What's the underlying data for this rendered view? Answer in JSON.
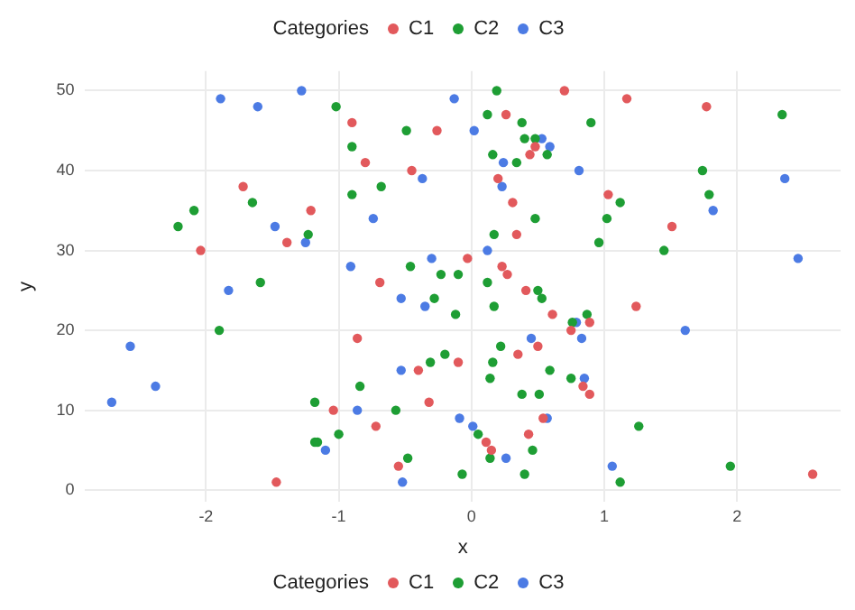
{
  "chart_data": {
    "type": "scatter",
    "xlabel": "x",
    "ylabel": "y",
    "legend_title": "Categories",
    "legend": "top",
    "grid": true,
    "marker": "circle",
    "xlim": [
      -2.91,
      2.78
    ],
    "xticks": [
      -2,
      -1,
      0,
      1,
      2
    ],
    "ylim": [
      -1.45,
      52.45
    ],
    "yticks": [
      0,
      10,
      20,
      30,
      40,
      50
    ],
    "series": [
      {
        "name": "C1",
        "color": "#e2595c",
        "x": [
          -1.72,
          -1.21,
          -1.39,
          -2.04,
          -1.47,
          -0.9,
          -0.8,
          -0.26,
          -0.45,
          -0.69,
          0.7,
          0.26,
          0.48,
          0.44,
          0.2,
          0.31,
          0.34,
          -0.03,
          0.23,
          0.27,
          0.41,
          1.17,
          1.77,
          1.03,
          1.51,
          0.61,
          0.89,
          0.75,
          -0.86,
          0.35,
          0.5,
          -0.1,
          -0.4,
          0.84,
          0.89,
          -1.04,
          -0.32,
          0.54,
          -0.72,
          0.43,
          0.11,
          0.15,
          -0.55,
          1.24,
          2.57
        ],
        "values": [
          38,
          35,
          31,
          30,
          1,
          46,
          41,
          45,
          40,
          26,
          50,
          47,
          43,
          42,
          39,
          36,
          32,
          29,
          28,
          27,
          25,
          49,
          48,
          37,
          33,
          22,
          21,
          20,
          19,
          17,
          18,
          16,
          15,
          13,
          12,
          10,
          11,
          9,
          8,
          7,
          6,
          5,
          3,
          23,
          2
        ]
      },
      {
        "name": "C2",
        "color": "#1e9e34",
        "x": [
          -2.09,
          -1.65,
          -2.21,
          -1.23,
          -1.59,
          -1.9,
          -1.18,
          -1.18,
          -1.16,
          -1.02,
          -0.9,
          -0.49,
          -0.9,
          -0.68,
          -0.46,
          -0.23,
          -0.1,
          -0.28,
          0.19,
          0.12,
          0.38,
          0.9,
          0.4,
          0.48,
          0.57,
          0.16,
          0.34,
          0.48,
          0.17,
          0.96,
          0.12,
          0.5,
          0.53,
          2.34,
          1.74,
          1.79,
          1.12,
          1.02,
          1.45,
          -0.12,
          0.17,
          0.76,
          0.87,
          0.22,
          -0.2,
          -0.31,
          0.16,
          0.59,
          0.14,
          0.75,
          -0.84,
          0.38,
          0.51,
          -0.57,
          0.05,
          -1.0,
          0.46,
          0.14,
          -0.48,
          -0.07,
          0.4,
          1.26,
          1.12,
          1.95
        ],
        "values": [
          35,
          36,
          33,
          32,
          26,
          20,
          11,
          6,
          6,
          48,
          43,
          45,
          37,
          38,
          28,
          27,
          27,
          24,
          50,
          47,
          46,
          46,
          44,
          44,
          42,
          42,
          41,
          34,
          32,
          31,
          26,
          25,
          24,
          47,
          40,
          37,
          36,
          34,
          30,
          22,
          23,
          21,
          22,
          18,
          17,
          16,
          16,
          15,
          14,
          14,
          13,
          12,
          12,
          10,
          7,
          7,
          5,
          4,
          4,
          2,
          2,
          8,
          1,
          3
        ]
      },
      {
        "name": "C3",
        "color": "#4c7be4",
        "x": [
          -1.89,
          -1.61,
          -1.28,
          -1.48,
          -1.25,
          -1.83,
          -2.57,
          -2.38,
          -2.71,
          -0.13,
          -0.37,
          -0.74,
          -0.91,
          -0.3,
          -0.53,
          0.02,
          0.53,
          0.59,
          0.24,
          0.81,
          0.23,
          0.12,
          2.36,
          1.82,
          2.46,
          -0.35,
          0.79,
          0.83,
          0.45,
          -0.53,
          0.85,
          -0.86,
          -0.09,
          0.01,
          0.57,
          -1.1,
          0.26,
          -0.52,
          1.61,
          1.06
        ],
        "values": [
          49,
          48,
          50,
          33,
          31,
          25,
          18,
          13,
          11,
          49,
          39,
          34,
          28,
          29,
          24,
          45,
          44,
          43,
          41,
          40,
          38,
          30,
          39,
          35,
          29,
          23,
          21,
          19,
          19,
          15,
          14,
          10,
          9,
          8,
          9,
          5,
          4,
          1,
          20,
          3
        ]
      }
    ]
  }
}
